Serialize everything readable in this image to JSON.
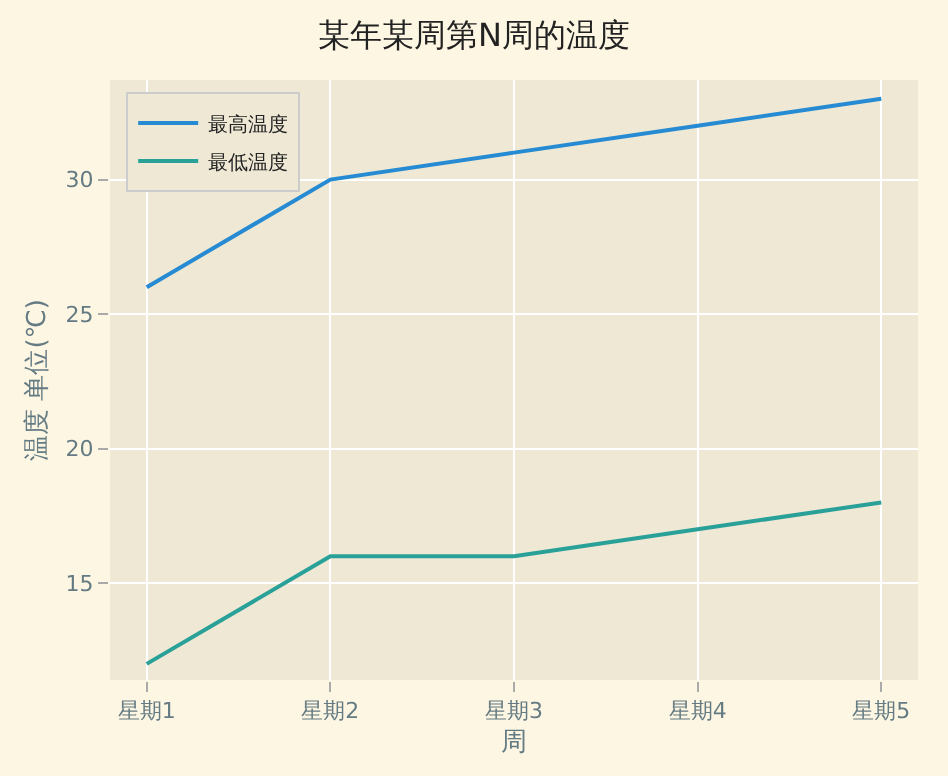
{
  "chart_data": {
    "type": "line",
    "title": "某年某周第N周的温度",
    "xlabel": "周",
    "ylabel": "温度 单位(℃)",
    "categories": [
      "星期1",
      "星期2",
      "星期3",
      "星期4",
      "星期5"
    ],
    "series": [
      {
        "name": "最高温度",
        "color": "#268bd2",
        "values": [
          26,
          30,
          31,
          32,
          33
        ]
      },
      {
        "name": "最低温度",
        "color": "#2aa198",
        "values": [
          12,
          16,
          16,
          17,
          18
        ]
      }
    ],
    "ylim": [
      11.4,
      33.7
    ],
    "yticks": [
      15,
      20,
      25,
      30
    ],
    "grid": true,
    "legend": "top left",
    "marker": "none",
    "line_style": "solid"
  }
}
